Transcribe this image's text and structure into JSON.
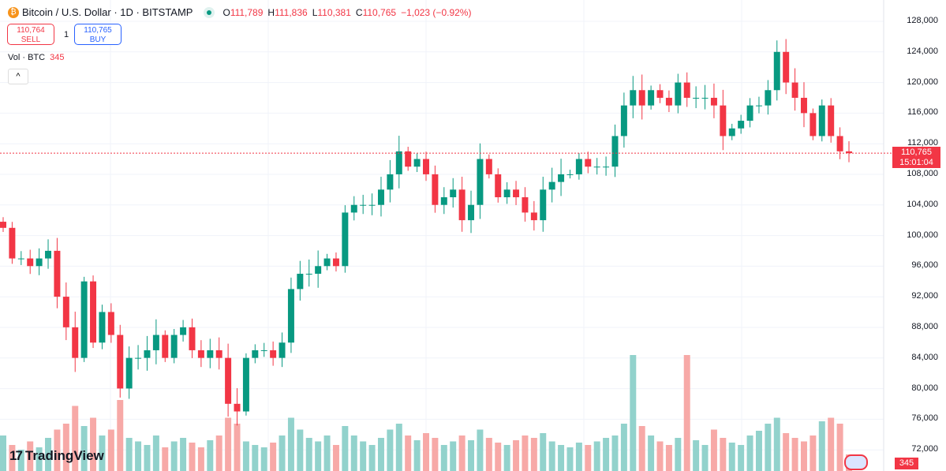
{
  "header": {
    "coin_icon": "bitcoin-icon",
    "symbol": "Bitcoin / U.S. Dollar · 1D · BITSTAMP",
    "open_label": "O",
    "open": "111,789",
    "high_label": "H",
    "high": "111,836",
    "low_label": "L",
    "low": "110,381",
    "close_label": "C",
    "close": "110,765",
    "change": "−1,023 (−0.92%)"
  },
  "trade": {
    "sell_price": "110,764",
    "sell_label": "SELL",
    "quantity": "1",
    "buy_price": "110,765",
    "buy_label": "BUY"
  },
  "volume_legend": {
    "label": "Vol · BTC",
    "value": "345"
  },
  "collapse_icon": "^",
  "price_label": {
    "price": "110,765",
    "countdown": "15:01:04"
  },
  "volume_label": "345",
  "logo": {
    "mark": "17",
    "text": "TradingView"
  },
  "colors": {
    "up": "#089981",
    "down": "#f23645",
    "vol_up": "#92d2cc",
    "vol_down": "#f7a9a7"
  },
  "chart_data": {
    "type": "candlestick",
    "y_ticks": [
      "128,000",
      "124,000",
      "120,000",
      "116,000",
      "112,000",
      "108,000",
      "104,000",
      "100,000",
      "96,000",
      "92,000",
      "88,000",
      "84,000",
      "80,000",
      "76,000",
      "72,000"
    ],
    "ylim": [
      72000,
      128000
    ],
    "current_price": 110765,
    "closes": [
      101000,
      97000,
      97000,
      96000,
      97000,
      98000,
      92000,
      88000,
      84000,
      94000,
      86000,
      90000,
      87000,
      80000,
      84000,
      84000,
      85000,
      87000,
      84000,
      87000,
      88000,
      85000,
      84000,
      85000,
      84000,
      78000,
      77000,
      84000,
      85000,
      85000,
      84000,
      86000,
      93000,
      95000,
      95000,
      96000,
      97000,
      96000,
      103000,
      104000,
      104000,
      104000,
      106000,
      108000,
      111000,
      109000,
      110000,
      108000,
      104000,
      105000,
      106000,
      102000,
      104000,
      110000,
      108000,
      105000,
      106000,
      105000,
      103000,
      102000,
      106000,
      107000,
      108000,
      108000,
      110000,
      109000,
      109000,
      109000,
      113000,
      117000,
      119000,
      117000,
      119000,
      118000,
      117000,
      120000,
      118000,
      118000,
      118000,
      117000,
      113000,
      114000,
      115000,
      117000,
      117000,
      119000,
      124000,
      120000,
      118000,
      116000,
      113000,
      117000,
      113000,
      111000,
      110765
    ],
    "volumes": [
      30,
      22,
      18,
      25,
      20,
      28,
      35,
      40,
      55,
      38,
      45,
      30,
      35,
      60,
      28,
      25,
      22,
      30,
      20,
      25,
      28,
      24,
      20,
      26,
      30,
      45,
      40,
      25,
      22,
      20,
      24,
      30,
      45,
      35,
      28,
      25,
      30,
      22,
      38,
      30,
      25,
      22,
      28,
      35,
      40,
      30,
      26,
      32,
      28,
      22,
      25,
      30,
      26,
      35,
      28,
      24,
      22,
      26,
      30,
      28,
      32,
      25,
      22,
      20,
      24,
      22,
      25,
      28,
      30,
      40,
      98,
      38,
      30,
      25,
      22,
      28,
      98,
      26,
      22,
      35,
      28,
      24,
      22,
      30,
      34,
      40,
      45,
      32,
      28,
      25,
      30,
      42,
      45,
      40,
      14
    ]
  }
}
